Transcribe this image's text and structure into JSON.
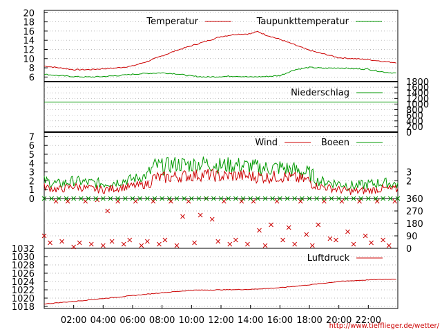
{
  "colors": {
    "primary": "#cc0000",
    "secondary": "#009900",
    "axis": "#000000",
    "grid": "#a0a0a0"
  },
  "x_axis": {
    "tick_labels": [
      "02:00",
      "04:00",
      "06:00",
      "08:00",
      "10:00",
      "12:00",
      "14:00",
      "16:00",
      "18:00",
      "20:00",
      "22:00"
    ],
    "range_hours": [
      0,
      24
    ]
  },
  "source_url": "http://www.tiefflieger.de/wetter/",
  "chart_data": [
    {
      "panel": "temperature",
      "type": "line",
      "y_ticks_left": [
        "20",
        "18",
        "16",
        "14",
        "12",
        "10",
        "8",
        "6"
      ],
      "ylim": [
        5,
        20.5
      ],
      "grid": true,
      "legend": [
        "Temperatur",
        "Taupunkttemperatur"
      ],
      "series": [
        {
          "name": "Temperatur",
          "x": [
            0,
            1,
            2,
            3,
            4,
            5,
            6,
            7,
            8,
            9,
            10,
            11,
            12,
            13,
            14,
            14.5,
            15,
            16,
            17,
            18,
            19,
            20,
            21,
            22,
            23,
            24
          ],
          "values": [
            8.4,
            8.0,
            7.6,
            7.6,
            7.8,
            8.0,
            8.4,
            9.4,
            10.6,
            11.8,
            12.8,
            13.8,
            14.8,
            15.3,
            15.4,
            15.9,
            15.2,
            14.2,
            13.0,
            11.8,
            11.0,
            10.2,
            10.0,
            9.8,
            9.4,
            9.1
          ]
        },
        {
          "name": "Taupunkttemperatur",
          "x": [
            0,
            1,
            2,
            3,
            4,
            5,
            6,
            7,
            8,
            9,
            10,
            11,
            12,
            13,
            14,
            15,
            16,
            17,
            18,
            19,
            20,
            21,
            22,
            23,
            24
          ],
          "values": [
            6.6,
            6.3,
            6.1,
            6.0,
            6.1,
            6.3,
            6.6,
            6.8,
            6.9,
            6.7,
            6.2,
            6.0,
            6.1,
            6.2,
            6.0,
            6.1,
            6.3,
            7.6,
            8.1,
            7.9,
            8.0,
            7.8,
            7.7,
            7.1,
            6.8
          ]
        }
      ]
    },
    {
      "panel": "precipitation",
      "type": "line",
      "y_ticks_right": [
        "1800",
        "1600",
        "1400",
        "1200",
        "1000",
        "800",
        "600",
        "400",
        "200",
        "0"
      ],
      "ylim": [
        0,
        1800
      ],
      "grid": true,
      "legend": [
        "Niederschlag"
      ],
      "series": [
        {
          "name": "Niederschlag",
          "x": [
            0,
            24
          ],
          "values": [
            1070,
            1070
          ]
        }
      ]
    },
    {
      "panel": "wind",
      "type": "line",
      "y_ticks_left": [
        "7",
        "6",
        "5",
        "4",
        "3",
        "2",
        "1",
        "0"
      ],
      "y_ticks_right": [
        "3",
        "2"
      ],
      "ylim": [
        0,
        7.5
      ],
      "grid": true,
      "legend": [
        "Wind",
        "Boeen"
      ],
      "series": [
        {
          "name": "Wind",
          "x": [
            0,
            1,
            2,
            3,
            4,
            5,
            6,
            7,
            7.5,
            8,
            9,
            10,
            11,
            12,
            13,
            14,
            15,
            16,
            17,
            18,
            18.5,
            19,
            20,
            21,
            22,
            23,
            24
          ],
          "values": [
            1.3,
            1.0,
            1.4,
            1.1,
            1.0,
            1.2,
            1.4,
            1.6,
            2.4,
            2.3,
            2.5,
            2.6,
            2.7,
            2.5,
            2.6,
            2.5,
            2.4,
            2.5,
            2.3,
            2.0,
            1.4,
            1.3,
            1.0,
            0.8,
            0.9,
            1.1,
            1.0
          ]
        },
        {
          "name": "Boeen",
          "x": [
            0,
            1,
            2,
            3,
            4,
            5,
            6,
            7,
            7.5,
            8,
            9,
            10,
            11,
            12,
            13,
            14,
            15,
            16,
            17,
            18,
            18.5,
            19,
            20,
            21,
            22,
            23,
            24
          ],
          "values": [
            2.0,
            1.6,
            2.0,
            1.8,
            1.7,
            1.9,
            2.2,
            2.6,
            3.7,
            3.6,
            3.9,
            3.8,
            4.0,
            3.7,
            3.8,
            3.6,
            3.4,
            3.5,
            3.2,
            2.8,
            2.0,
            1.9,
            1.7,
            1.4,
            1.6,
            1.8,
            1.6
          ]
        }
      ]
    },
    {
      "panel": "wind_direction",
      "type": "scatter",
      "y_ticks_right": [
        "360",
        "270",
        "180",
        "90",
        "0"
      ],
      "ylim": [
        0,
        360
      ],
      "grid": true,
      "series": [
        {
          "name": "",
          "x": [
            0,
            0.4,
            0.8,
            1.2,
            1.6,
            2.0,
            2.4,
            2.8,
            3.2,
            3.6,
            4.0,
            4.3,
            4.6,
            5.0,
            5.4,
            5.8,
            6.2,
            6.6,
            7.0,
            7.4,
            7.8,
            8.2,
            8.6,
            9.0,
            9.4,
            9.8,
            10.2,
            10.6,
            11.0,
            11.4,
            11.8,
            12.2,
            12.6,
            13.0,
            13.4,
            13.8,
            14.2,
            14.6,
            15.0,
            15.4,
            15.8,
            16.2,
            16.6,
            17.0,
            17.4,
            17.8,
            18.2,
            18.6,
            19.0,
            19.4,
            19.8,
            20.2,
            20.6,
            21.0,
            21.4,
            21.8,
            22.2,
            22.6,
            23.0,
            23.4,
            23.8
          ],
          "values": [
            90,
            40,
            340,
            50,
            340,
            10,
            40,
            340,
            30,
            350,
            20,
            270,
            50,
            340,
            30,
            60,
            340,
            20,
            50,
            340,
            30,
            60,
            340,
            20,
            230,
            340,
            40,
            240,
            360,
            210,
            50,
            340,
            30,
            60,
            340,
            30,
            340,
            130,
            20,
            170,
            340,
            60,
            150,
            30,
            340,
            100,
            20,
            170,
            340,
            70,
            60,
            340,
            120,
            30,
            340,
            90,
            40,
            340,
            60,
            20,
            340
          ]
        },
        {
          "name": "",
          "x": [
            0,
            0.5,
            1,
            1.5,
            2,
            2.5,
            3,
            3.5,
            4,
            4.5,
            5,
            5.5,
            6,
            6.5,
            7,
            7.5,
            8,
            8.5,
            9,
            9.5,
            10,
            10.5,
            11,
            11.5,
            12,
            12.5,
            13,
            13.5,
            14,
            14.5,
            15,
            15.5,
            16,
            16.5,
            17,
            17.5,
            18,
            18.5,
            19,
            19.5,
            20,
            20.5,
            21,
            21.5,
            22,
            22.5,
            23,
            23.5,
            24
          ],
          "values": [
            360,
            360,
            360,
            360,
            360,
            360,
            360,
            360,
            360,
            360,
            360,
            360,
            360,
            360,
            360,
            360,
            360,
            360,
            360,
            360,
            360,
            360,
            360,
            360,
            360,
            360,
            360,
            360,
            360,
            360,
            360,
            360,
            360,
            360,
            360,
            360,
            360,
            360,
            360,
            360,
            360,
            360,
            360,
            360,
            360,
            360,
            360,
            360,
            360
          ]
        }
      ]
    },
    {
      "panel": "pressure",
      "type": "line",
      "y_ticks_left": [
        "1032",
        "1030",
        "1028",
        "1026",
        "1024",
        "1022",
        "1020",
        "1018"
      ],
      "ylim": [
        1017.5,
        1032
      ],
      "grid": true,
      "legend": [
        "Luftdruck"
      ],
      "series": [
        {
          "name": "Luftdruck",
          "x": [
            0,
            2,
            4,
            6,
            8,
            10,
            12,
            14,
            16,
            18,
            20,
            22,
            24
          ],
          "values": [
            1018.6,
            1019.2,
            1019.9,
            1020.6,
            1021.3,
            1021.9,
            1022.0,
            1022.1,
            1022.5,
            1023.2,
            1024.0,
            1024.4,
            1024.6
          ]
        }
      ]
    }
  ]
}
